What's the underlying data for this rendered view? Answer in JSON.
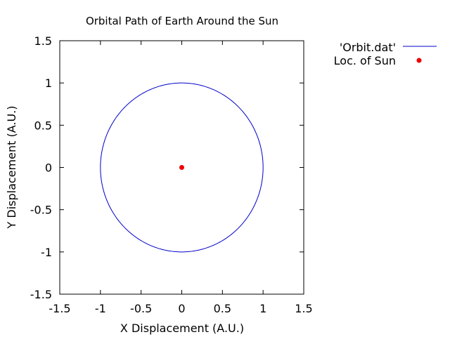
{
  "chart_data": {
    "type": "line",
    "title": "Orbital Path of Earth Around the Sun",
    "xlabel": "X Displacement (A.U.)",
    "ylabel": "Y Displacement (A.U.)",
    "xlim": [
      -1.5,
      1.5
    ],
    "ylim": [
      -1.5,
      1.5
    ],
    "xticks": [
      -1.5,
      -1,
      -0.5,
      0,
      0.5,
      1,
      1.5
    ],
    "xtick_labels": [
      "-1.5",
      "-1",
      "-0.5",
      "0",
      "0.5",
      "1",
      "1.5"
    ],
    "yticks": [
      -1.5,
      -1,
      -0.5,
      0,
      0.5,
      1,
      1.5
    ],
    "ytick_labels": [
      "-1.5",
      "-1",
      "-0.5",
      "0",
      "0.5",
      "1",
      "1.5"
    ],
    "grid": false,
    "legend_position": "outside-top-right",
    "series": [
      {
        "name": "'Orbit.dat'",
        "kind": "line",
        "color": "#0000cc",
        "shape": "circle",
        "center": [
          0,
          0
        ],
        "radius": 1.0
      },
      {
        "name": "Loc. of Sun",
        "kind": "point",
        "color": "#ee0000",
        "x": [
          0
        ],
        "y": [
          0
        ]
      }
    ]
  }
}
